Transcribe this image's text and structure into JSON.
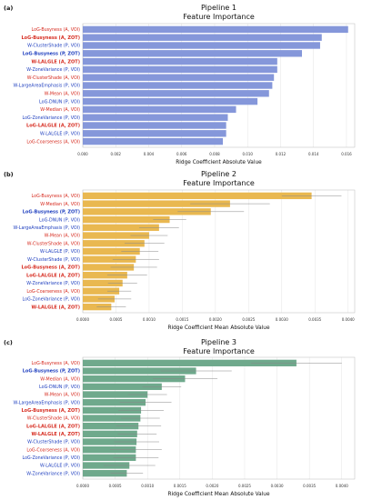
{
  "colors": {
    "blue_label": "#1f3fbf",
    "red_label": "#d62a1e",
    "axis": "#bbbbbb"
  },
  "chart_data": [
    {
      "type": "bar",
      "orientation": "horizontal",
      "panel": "(a)",
      "title": "Pipeline 1",
      "subtitle": "Feature Importance",
      "xlabel": "Ridge Coefficient Absolute Value",
      "xlim": [
        0,
        0.0165
      ],
      "xticks": [
        "0.000",
        "0.002",
        "0.004",
        "0.006",
        "0.008",
        "0.010",
        "0.012",
        "0.014",
        "0.016"
      ],
      "bar_color": "#8597da",
      "grid": true,
      "categories": [
        {
          "label": "LoG-Busyness (A, VOI)",
          "color": "red",
          "bold": false
        },
        {
          "label": "LoG-Busyness (A, ZOT)",
          "color": "red",
          "bold": true
        },
        {
          "label": "W-ClusterShade (P, VOI)",
          "color": "blue",
          "bold": false
        },
        {
          "label": "LoG-Busyness (P, ZOT)",
          "color": "blue",
          "bold": true
        },
        {
          "label": "W-LALGLE (A, ZOT)",
          "color": "red",
          "bold": true
        },
        {
          "label": "W-ZoneVariance (P, VOI)",
          "color": "blue",
          "bold": false
        },
        {
          "label": "W-ClusterShade (A, VOI)",
          "color": "red",
          "bold": false
        },
        {
          "label": "W-LargeAreaEmphasis (P, VOI)",
          "color": "blue",
          "bold": false
        },
        {
          "label": "W-Mean (A, VOI)",
          "color": "red",
          "bold": false
        },
        {
          "label": "LoG-DNUN (P, VOI)",
          "color": "blue",
          "bold": false
        },
        {
          "label": "W-Median (A, VOI)",
          "color": "red",
          "bold": false
        },
        {
          "label": "LoG-ZoneVariance (P, VOI)",
          "color": "blue",
          "bold": false
        },
        {
          "label": "LoG-LALGLE (A, ZOT)",
          "color": "red",
          "bold": true
        },
        {
          "label": "W-LALGLE (P, VOI)",
          "color": "blue",
          "bold": false
        },
        {
          "label": "LoG-Coarseness (A, VOI)",
          "color": "red",
          "bold": false
        }
      ],
      "values": [
        0.0161,
        0.0145,
        0.0144,
        0.0133,
        0.0118,
        0.0118,
        0.0116,
        0.0115,
        0.0113,
        0.0106,
        0.0093,
        0.0088,
        0.0087,
        0.0087,
        0.0085
      ]
    },
    {
      "type": "bar",
      "orientation": "horizontal",
      "panel": "(b)",
      "title": "Pipeline 2",
      "subtitle": "Feature Importance",
      "xlabel": "Ridge Coefficient Mean Absolute Value",
      "xlim": [
        0,
        0.0041
      ],
      "xticks": [
        "0.0000",
        "0.0005",
        "0.0010",
        "0.0015",
        "0.0020",
        "0.0025",
        "0.0030",
        "0.0035",
        "0.0040"
      ],
      "bar_color": "#e9b850",
      "grid": true,
      "categories": [
        {
          "label": "LoG-Busyness (A, VOI)",
          "color": "red",
          "bold": false
        },
        {
          "label": "W-Median (A, VOI)",
          "color": "red",
          "bold": false
        },
        {
          "label": "LoG-Busyness (P, ZOT)",
          "color": "blue",
          "bold": true
        },
        {
          "label": "LoG-DNUN (P, VOI)",
          "color": "blue",
          "bold": false
        },
        {
          "label": "W-LargeAreaEmphasis (P, VOI)",
          "color": "blue",
          "bold": false
        },
        {
          "label": "W-Mean (A, VOI)",
          "color": "red",
          "bold": false
        },
        {
          "label": "W-ClusterShade (A, VOI)",
          "color": "red",
          "bold": false
        },
        {
          "label": "W-LALGLE (P, VOI)",
          "color": "blue",
          "bold": false
        },
        {
          "label": "W-ClusterShade (P, VOI)",
          "color": "blue",
          "bold": false
        },
        {
          "label": "LoG-Busyness (A, ZOT)",
          "color": "red",
          "bold": true
        },
        {
          "label": "LoG-LALGLE (A, ZOT)",
          "color": "red",
          "bold": true
        },
        {
          "label": "W-ZoneVariance (P, VOI)",
          "color": "blue",
          "bold": false
        },
        {
          "label": "LoG-Coarseness (A, VOI)",
          "color": "red",
          "bold": false
        },
        {
          "label": "LoG-ZoneVariance (P, VOI)",
          "color": "blue",
          "bold": false
        },
        {
          "label": "W-LALGLE (A, ZOT)",
          "color": "red",
          "bold": true
        }
      ],
      "values": [
        0.00345,
        0.00222,
        0.00193,
        0.00131,
        0.00115,
        0.001,
        0.00093,
        0.00086,
        0.0008,
        0.00077,
        0.00067,
        0.0006,
        0.00055,
        0.00048,
        0.00043
      ],
      "errors": [
        0.00045,
        0.0006,
        0.0005,
        0.00025,
        0.0003,
        0.00028,
        0.0003,
        0.00028,
        0.00035,
        0.00035,
        0.0003,
        0.00022,
        0.00018,
        0.00025,
        0.00022
      ]
    },
    {
      "type": "bar",
      "orientation": "horizontal",
      "panel": "(c)",
      "title": "Pipeline 3",
      "subtitle": "Feature Importance",
      "xlabel": "Ridge Coefficient Mean Absolute Value",
      "xlim": [
        0,
        0.0042
      ],
      "xticks": [
        "0.0000",
        "0.0005",
        "0.0010",
        "0.0015",
        "0.0020",
        "0.0025",
        "0.0030",
        "0.0035",
        "0.0040"
      ],
      "bar_color": "#6fa98c",
      "grid": true,
      "categories": [
        {
          "label": "LoG-Busyness (A, VOI)",
          "color": "red",
          "bold": false
        },
        {
          "label": "LoG-Busyness (P, ZOT)",
          "color": "blue",
          "bold": true
        },
        {
          "label": "W-Median (A, VOI)",
          "color": "red",
          "bold": false
        },
        {
          "label": "LoG-DNUN (P, VOI)",
          "color": "blue",
          "bold": false
        },
        {
          "label": "W-Mean (A, VOI)",
          "color": "red",
          "bold": false
        },
        {
          "label": "W-LargeAreaEmphasis (P, VOI)",
          "color": "blue",
          "bold": false
        },
        {
          "label": "LoG-Busyness (A, ZOT)",
          "color": "red",
          "bold": true
        },
        {
          "label": "W-ClusterShade (A, VOI)",
          "color": "red",
          "bold": false
        },
        {
          "label": "LoG-LALGLE (A, ZOT)",
          "color": "red",
          "bold": true
        },
        {
          "label": "W-LALGLE (A, ZOT)",
          "color": "red",
          "bold": true
        },
        {
          "label": "W-ClusterShade (P, VOI)",
          "color": "blue",
          "bold": false
        },
        {
          "label": "LoG-Coarseness (A, VOI)",
          "color": "red",
          "bold": false
        },
        {
          "label": "LoG-ZoneVariance (P, VOI)",
          "color": "blue",
          "bold": false
        },
        {
          "label": "W-LALGLE (P, VOI)",
          "color": "blue",
          "bold": false
        },
        {
          "label": "W-ZoneVariance (P, VOI)",
          "color": "blue",
          "bold": false
        }
      ],
      "values": [
        0.0033,
        0.00175,
        0.00158,
        0.00122,
        0.001,
        0.00097,
        0.0009,
        0.00089,
        0.00086,
        0.00084,
        0.00083,
        0.00082,
        0.00082,
        0.00072,
        0.00068
      ],
      "errors": [
        0.0007,
        0.00055,
        0.0005,
        0.0003,
        0.0003,
        0.0004,
        0.00035,
        0.0003,
        0.00035,
        0.0003,
        0.00035,
        0.0004,
        0.00035,
        0.0004,
        0.00025
      ]
    }
  ]
}
